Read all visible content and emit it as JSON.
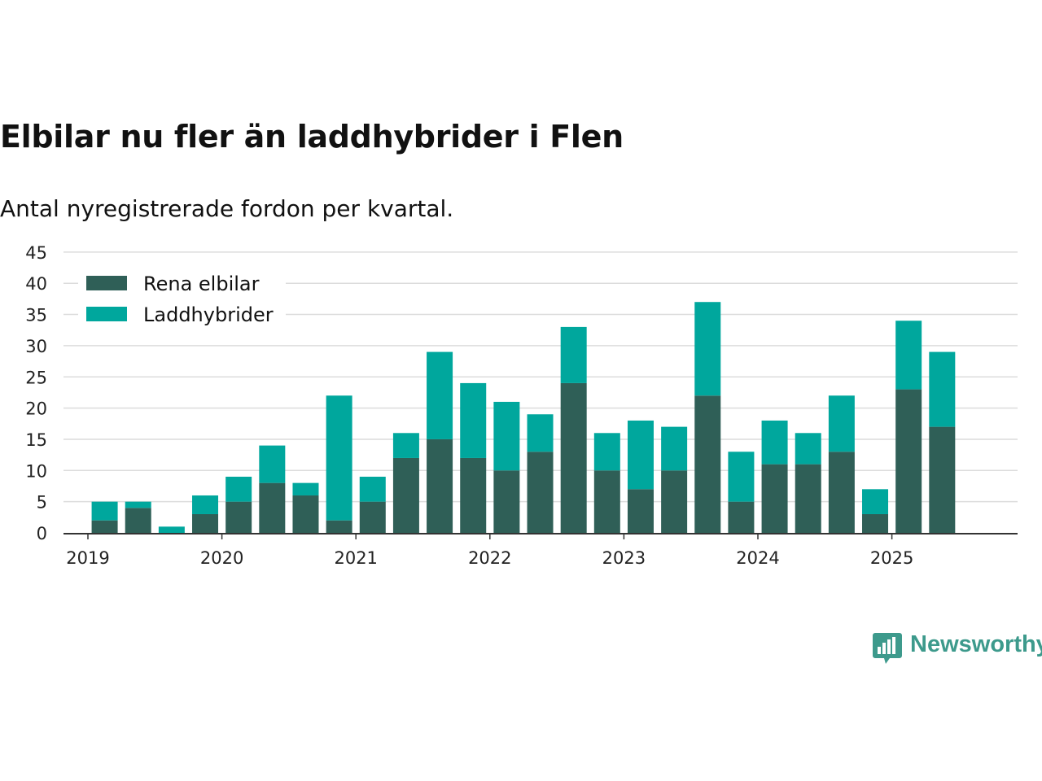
{
  "title": "Elbilar nu fler än laddhybrider i Flen",
  "subtitle": "Antal nyregistrerade fordon per kvartal.",
  "brand": {
    "name": "Newsworthy",
    "icon": "bar-chart-speech-bubble-icon",
    "color": "#3d9a8c"
  },
  "chart_data": {
    "type": "bar",
    "stacked": true,
    "categories": [
      "2019 Q1",
      "2019 Q2",
      "2019 Q3",
      "2019 Q4",
      "2020 Q1",
      "2020 Q2",
      "2020 Q3",
      "2020 Q4",
      "2021 Q1",
      "2021 Q2",
      "2021 Q3",
      "2021 Q4",
      "2022 Q1",
      "2022 Q2",
      "2022 Q3",
      "2022 Q4",
      "2023 Q1",
      "2023 Q2",
      "2023 Q3",
      "2023 Q4",
      "2024 Q1",
      "2024 Q2",
      "2024 Q3",
      "2024 Q4",
      "2025 Q1",
      "2025 Q2",
      "2025 Q3"
    ],
    "series": [
      {
        "name": "Rena elbilar",
        "color": "#2f5f57",
        "values": [
          2,
          4,
          0,
          3,
          5,
          8,
          6,
          2,
          5,
          12,
          15,
          12,
          10,
          13,
          24,
          10,
          7,
          10,
          22,
          5,
          11,
          11,
          13,
          3,
          23,
          17,
          0
        ]
      },
      {
        "name": "Laddhybrider",
        "color": "#00a79d",
        "values": [
          3,
          1,
          1,
          3,
          4,
          6,
          2,
          20,
          4,
          4,
          14,
          12,
          11,
          6,
          9,
          6,
          11,
          7,
          15,
          8,
          7,
          5,
          9,
          4,
          11,
          12,
          0
        ]
      }
    ],
    "x_tick_labels": [
      "2019",
      "2020",
      "2021",
      "2022",
      "2023",
      "2024",
      "2025"
    ],
    "y_ticks": [
      "0",
      "5",
      "10",
      "15",
      "20",
      "25",
      "30",
      "35",
      "40",
      "45"
    ],
    "ylim": [
      0,
      45
    ],
    "grid": true,
    "legend_position": "top-left",
    "xlabel": "",
    "ylabel": ""
  }
}
